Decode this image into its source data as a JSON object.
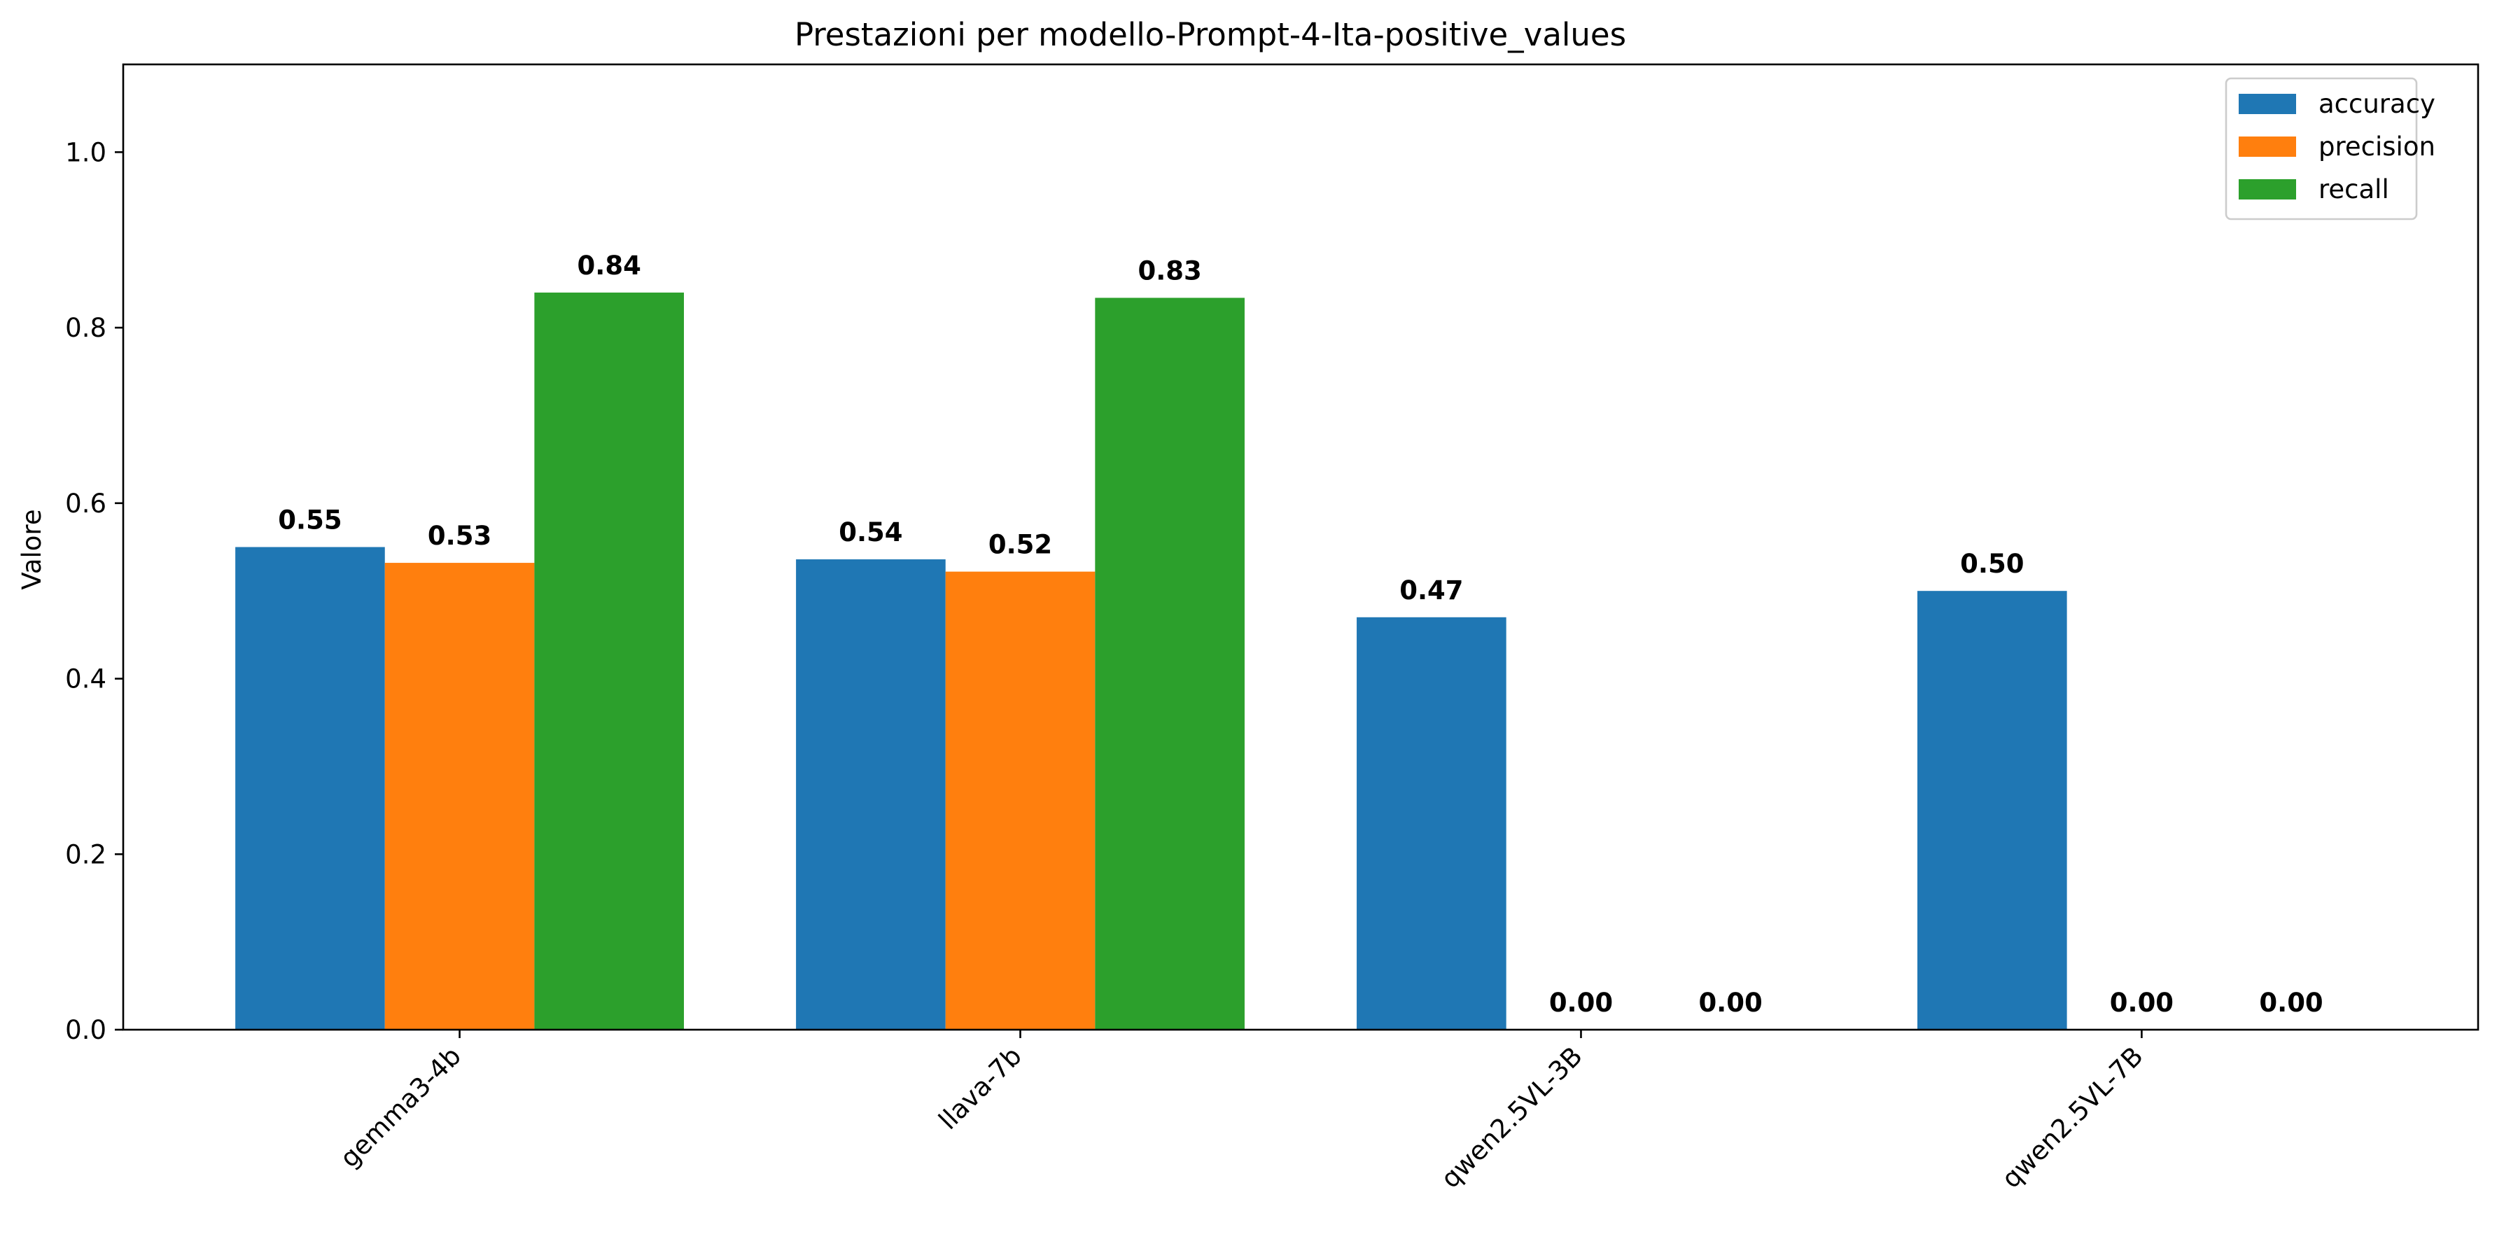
{
  "chart_data": {
    "type": "bar",
    "title": "Prestazioni per modello-Prompt-4-Ita-positive_values",
    "xlabel": "",
    "ylabel": "Valore",
    "ylim": [
      0,
      1.1
    ],
    "yticks": [
      0.0,
      0.2,
      0.4,
      0.6,
      0.8,
      1.0
    ],
    "ytick_labels": [
      "0.0",
      "0.2",
      "0.4",
      "0.6",
      "0.8",
      "1.0"
    ],
    "categories": [
      "gemma3-4b",
      "llava-7b",
      "qwen2.5VL-3B",
      "qwen2.5VL-7B"
    ],
    "series": [
      {
        "name": "accuracy",
        "color": "#1f77b4",
        "values": [
          0.55,
          0.536,
          0.47,
          0.5
        ],
        "labels": [
          "0.55",
          "0.54",
          "0.47",
          "0.50"
        ]
      },
      {
        "name": "precision",
        "color": "#ff7f0e",
        "values": [
          0.532,
          0.522,
          0.0,
          0.0
        ],
        "labels": [
          "0.53",
          "0.52",
          "0.00",
          "0.00"
        ]
      },
      {
        "name": "recall",
        "color": "#2ca02c",
        "values": [
          0.84,
          0.834,
          0.0,
          0.0
        ],
        "labels": [
          "0.84",
          "0.83",
          "0.00",
          "0.00"
        ]
      }
    ],
    "grid": false,
    "legend_position": "top-right"
  }
}
